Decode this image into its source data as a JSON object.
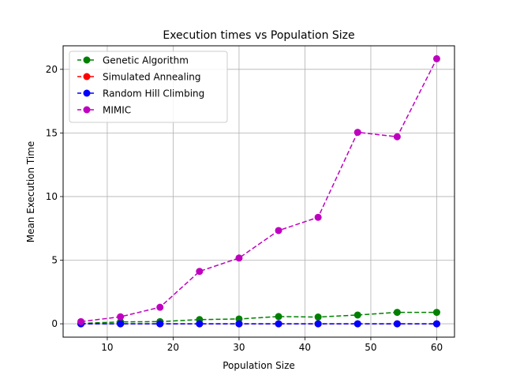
{
  "chart_data": {
    "type": "line",
    "title": "Execution times vs Population Size",
    "xlabel": "Population Size",
    "ylabel": "Mean Execution Time",
    "xlim": [
      3.3,
      62.7
    ],
    "ylim": [
      -1.05,
      21.85
    ],
    "xticks": [
      10,
      20,
      30,
      40,
      50,
      60
    ],
    "yticks": [
      0,
      5,
      10,
      15,
      20
    ],
    "grid": true,
    "legend_position": "upper-left",
    "x": [
      6,
      12,
      18,
      24,
      30,
      36,
      42,
      48,
      54,
      60
    ],
    "series": [
      {
        "name": "Genetic Algorithm",
        "color": "#008000",
        "marker": "circle",
        "linestyle": "dashed",
        "values": [
          0.03,
          0.15,
          0.17,
          0.33,
          0.38,
          0.57,
          0.53,
          0.69,
          0.9,
          0.9
        ]
      },
      {
        "name": "Simulated Annealing",
        "color": "#ff0000",
        "marker": "circle",
        "linestyle": "dashed",
        "values": [
          0.0,
          0.0,
          0.0,
          0.0,
          0.0,
          0.0,
          0.0,
          0.0,
          0.0,
          0.0
        ]
      },
      {
        "name": "Random Hill Climbing",
        "color": "#0000ff",
        "marker": "circle",
        "linestyle": "dashed",
        "values": [
          0.0,
          0.0,
          0.0,
          0.0,
          0.0,
          0.0,
          0.0,
          0.0,
          0.0,
          0.0
        ]
      },
      {
        "name": "MIMIC",
        "color": "#bf00bf",
        "marker": "circle",
        "linestyle": "dashed",
        "values": [
          0.17,
          0.55,
          1.3,
          4.12,
          5.17,
          7.33,
          8.37,
          15.05,
          14.7,
          20.83
        ]
      }
    ]
  }
}
